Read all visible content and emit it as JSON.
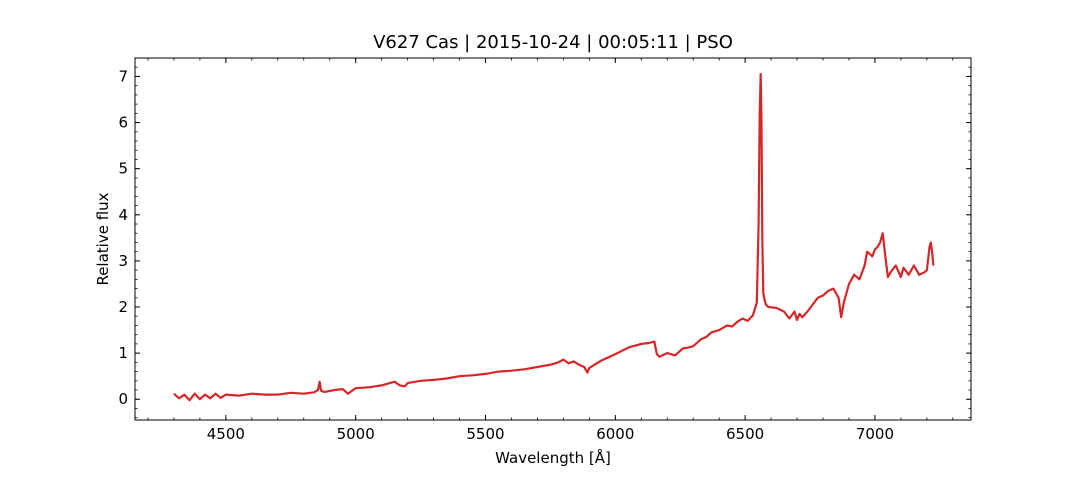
{
  "chart_data": {
    "type": "line",
    "title": "V627 Cas | 2015-10-24 | 00:05:11 | PSO",
    "xlabel": "Wavelength [Å]",
    "ylabel": "Relative flux",
    "xlim": [
      4150,
      7370
    ],
    "ylim": [
      -0.45,
      7.4
    ],
    "xticks": [
      4500,
      5000,
      5500,
      6000,
      6500,
      7000
    ],
    "yticks": [
      0,
      1,
      2,
      3,
      4,
      5,
      6,
      7
    ],
    "grid": false,
    "series": [
      {
        "color": "#d62728",
        "x": [
          4300,
          4320,
          4340,
          4360,
          4380,
          4400,
          4420,
          4440,
          4460,
          4480,
          4500,
          4550,
          4600,
          4650,
          4700,
          4750,
          4800,
          4840,
          4855,
          4861,
          4867,
          4880,
          4920,
          4950,
          4970,
          5000,
          5050,
          5100,
          5150,
          5170,
          5190,
          5200,
          5250,
          5300,
          5350,
          5400,
          5450,
          5500,
          5550,
          5600,
          5650,
          5700,
          5750,
          5780,
          5800,
          5820,
          5840,
          5860,
          5880,
          5893,
          5900,
          5920,
          5950,
          6000,
          6050,
          6100,
          6130,
          6150,
          6160,
          6170,
          6200,
          6230,
          6260,
          6280,
          6300,
          6330,
          6350,
          6370,
          6400,
          6430,
          6450,
          6470,
          6490,
          6510,
          6530,
          6545,
          6552,
          6556,
          6560,
          6563,
          6566,
          6570,
          6575,
          6580,
          6590,
          6620,
          6650,
          6670,
          6690,
          6700,
          6710,
          6720,
          6740,
          6760,
          6780,
          6800,
          6820,
          6840,
          6860,
          6870,
          6880,
          6900,
          6920,
          6940,
          6960,
          6970,
          6990,
          7000,
          7010,
          7020,
          7030,
          7040,
          7050,
          7060,
          7080,
          7100,
          7110,
          7130,
          7150,
          7170,
          7190,
          7200,
          7210,
          7215,
          7220,
          7225
        ],
        "y": [
          0.12,
          0.02,
          0.1,
          -0.02,
          0.12,
          0.0,
          0.1,
          0.02,
          0.12,
          0.03,
          0.1,
          0.08,
          0.12,
          0.1,
          0.1,
          0.14,
          0.12,
          0.15,
          0.2,
          0.38,
          0.18,
          0.16,
          0.2,
          0.22,
          0.12,
          0.24,
          0.26,
          0.3,
          0.38,
          0.3,
          0.28,
          0.35,
          0.4,
          0.42,
          0.45,
          0.5,
          0.52,
          0.55,
          0.6,
          0.62,
          0.65,
          0.7,
          0.75,
          0.8,
          0.86,
          0.78,
          0.82,
          0.75,
          0.7,
          0.58,
          0.68,
          0.75,
          0.85,
          0.98,
          1.12,
          1.2,
          1.22,
          1.25,
          0.98,
          0.92,
          1.0,
          0.95,
          1.1,
          1.12,
          1.15,
          1.3,
          1.35,
          1.45,
          1.5,
          1.6,
          1.58,
          1.68,
          1.75,
          1.7,
          1.82,
          2.1,
          3.8,
          6.2,
          7.05,
          6.0,
          3.5,
          2.3,
          2.15,
          2.05,
          2.0,
          1.98,
          1.9,
          1.75,
          1.9,
          1.72,
          1.85,
          1.78,
          1.9,
          2.05,
          2.2,
          2.25,
          2.35,
          2.4,
          2.2,
          1.78,
          2.1,
          2.5,
          2.7,
          2.6,
          2.9,
          3.2,
          3.1,
          3.25,
          3.3,
          3.4,
          3.6,
          3.1,
          2.65,
          2.75,
          2.9,
          2.65,
          2.85,
          2.7,
          2.9,
          2.7,
          2.75,
          2.8,
          3.3,
          3.4,
          3.2,
          2.9
        ]
      }
    ]
  }
}
